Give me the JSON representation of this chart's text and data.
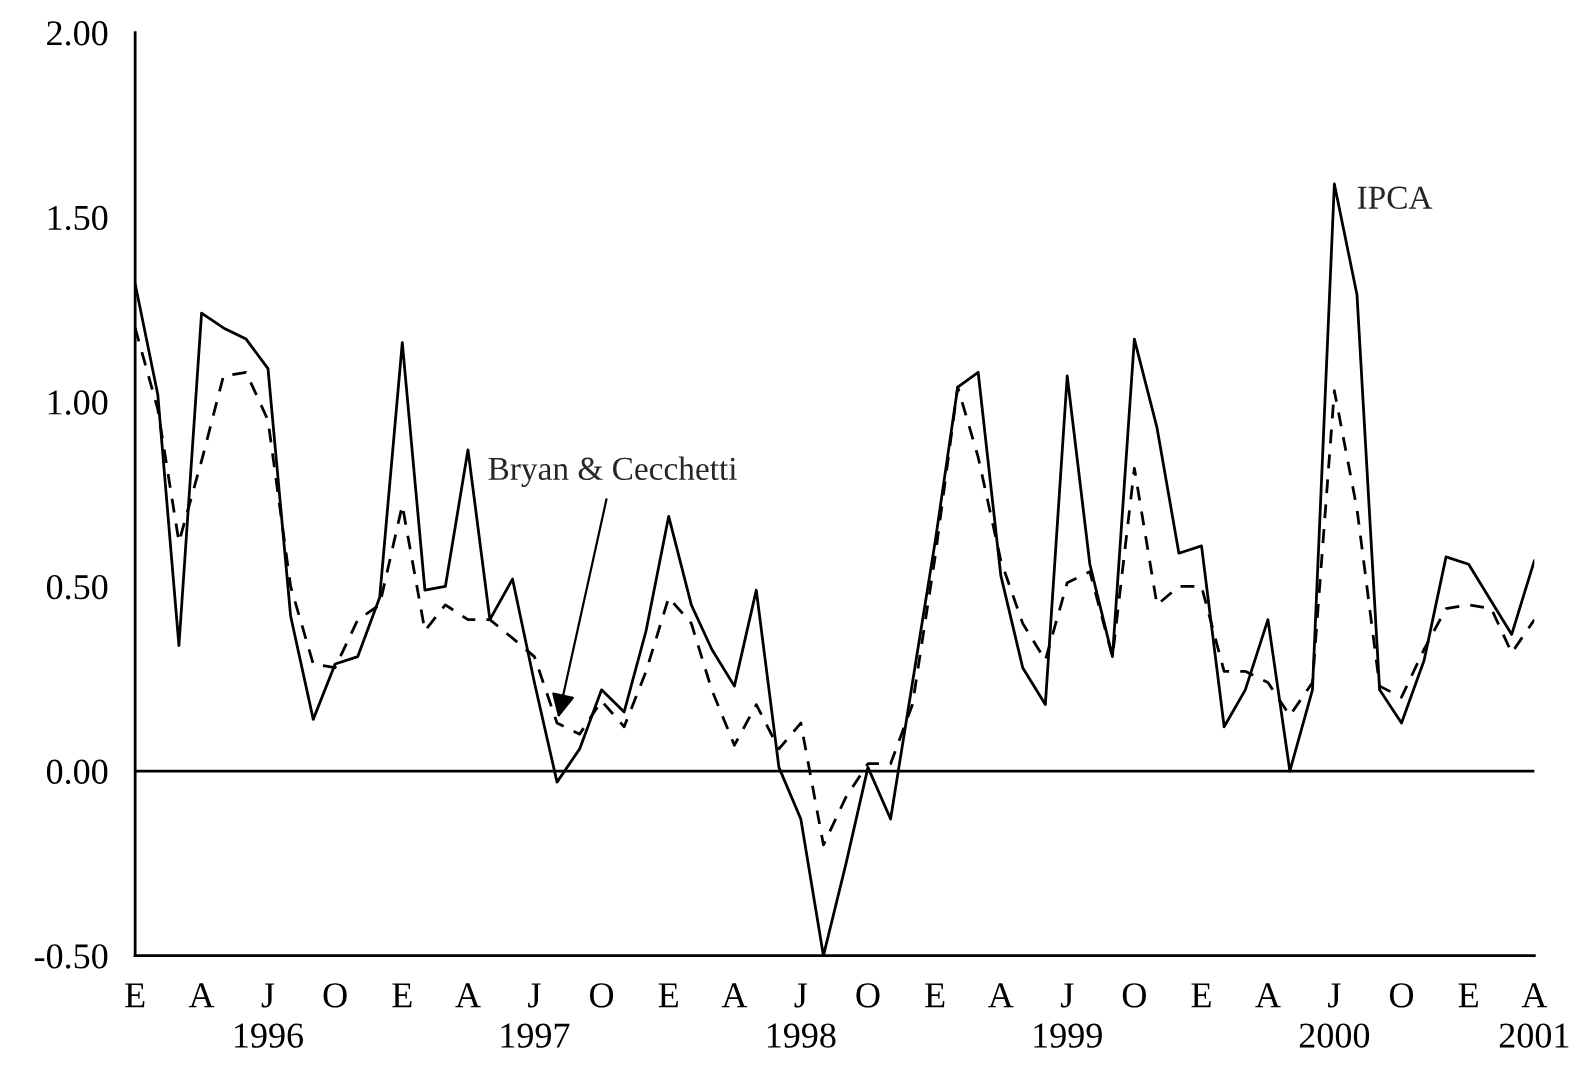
{
  "chart_data": {
    "type": "line",
    "x": [
      "1996-01",
      "1996-02",
      "1996-03",
      "1996-04",
      "1996-05",
      "1996-06",
      "1996-07",
      "1996-08",
      "1996-09",
      "1996-10",
      "1996-11",
      "1996-12",
      "1997-01",
      "1997-02",
      "1997-03",
      "1997-04",
      "1997-05",
      "1997-06",
      "1997-07",
      "1997-08",
      "1997-09",
      "1997-10",
      "1997-11",
      "1997-12",
      "1998-01",
      "1998-02",
      "1998-03",
      "1998-04",
      "1998-05",
      "1998-06",
      "1998-07",
      "1998-08",
      "1998-09",
      "1998-10",
      "1998-11",
      "1998-12",
      "1999-01",
      "1999-02",
      "1999-03",
      "1999-04",
      "1999-05",
      "1999-06",
      "1999-07",
      "1999-08",
      "1999-09",
      "1999-10",
      "1999-11",
      "1999-12",
      "2000-01",
      "2000-02",
      "2000-03",
      "2000-04",
      "2000-05",
      "2000-06",
      "2000-07",
      "2000-08",
      "2000-09",
      "2000-10",
      "2000-11",
      "2000-12",
      "2001-01",
      "2001-02",
      "2001-03",
      "2001-04"
    ],
    "series": [
      {
        "name": "IPCA",
        "color": "#000000",
        "line_style": "solid",
        "values": [
          1.32,
          1.02,
          0.34,
          1.24,
          1.2,
          1.17,
          1.09,
          0.42,
          0.14,
          0.29,
          0.31,
          0.47,
          1.16,
          0.49,
          0.5,
          0.87,
          0.41,
          0.52,
          0.24,
          -0.03,
          0.06,
          0.22,
          0.16,
          0.38,
          0.69,
          0.45,
          0.33,
          0.23,
          0.49,
          0.01,
          -0.13,
          -0.5,
          -0.25,
          0.01,
          -0.13,
          0.24,
          0.62,
          1.04,
          1.08,
          0.53,
          0.28,
          0.18,
          1.07,
          0.56,
          0.31,
          1.17,
          0.93,
          0.59,
          0.61,
          0.12,
          0.22,
          0.41,
          0.0,
          0.22,
          1.59,
          1.29,
          0.22,
          0.13,
          0.3,
          0.58,
          0.56,
          0.46,
          0.37,
          0.57
        ]
      },
      {
        "color": "#000000",
        "line_style": "dashed",
        "values": [
          1.2,
          0.98,
          0.62,
          0.84,
          1.07,
          1.08,
          0.95,
          0.5,
          0.29,
          0.28,
          0.41,
          0.45,
          0.72,
          0.38,
          0.45,
          0.41,
          0.41,
          0.36,
          0.31,
          0.13,
          0.1,
          0.19,
          0.12,
          0.27,
          0.47,
          0.4,
          0.22,
          0.07,
          0.18,
          0.06,
          0.13,
          -0.2,
          -0.07,
          0.02,
          0.02,
          0.18,
          0.58,
          1.04,
          0.85,
          0.57,
          0.4,
          0.3,
          0.51,
          0.54,
          0.31,
          0.82,
          0.45,
          0.5,
          0.5,
          0.27,
          0.27,
          0.24,
          0.15,
          0.24,
          1.03,
          0.71,
          0.23,
          0.2,
          0.33,
          0.44,
          0.45,
          0.44,
          0.32,
          0.41
        ]
      }
    ],
    "annotations": [
      {
        "text": "Bryan & Cecchetti",
        "x": "1997-08",
        "y": 0.13
      }
    ],
    "ylim": [
      -0.5,
      2.0
    ],
    "yticks": [
      {
        "value": -0.5,
        "label": "-0.50"
      },
      {
        "value": 0,
        "label": "0.00"
      },
      {
        "value": 0.5,
        "label": "0.50"
      },
      {
        "value": 1.0,
        "label": "1.00"
      },
      {
        "value": 1.5,
        "label": "1.50"
      },
      {
        "value": 2.0,
        "label": "2.00"
      }
    ],
    "xlim": [
      "1996-01",
      "2001-04"
    ],
    "xticks": [
      {
        "value": "1996-01",
        "label": "E"
      },
      {
        "value": "1996-04",
        "label": "A"
      },
      {
        "value": "1996-07",
        "label": "J\n1996"
      },
      {
        "value": "1996-10",
        "label": "O"
      },
      {
        "value": "1997-01",
        "label": "E"
      },
      {
        "value": "1997-04",
        "label": "A"
      },
      {
        "value": "1997-07",
        "label": "J\n1997"
      },
      {
        "value": "1997-10",
        "label": "O"
      },
      {
        "value": "1998-01",
        "label": "E"
      },
      {
        "value": "1998-04",
        "label": "A"
      },
      {
        "value": "1998-07",
        "label": "J\n1998"
      },
      {
        "value": "1998-10",
        "label": "O"
      },
      {
        "value": "1999-01",
        "label": "E"
      },
      {
        "value": "1999-04",
        "label": "A"
      },
      {
        "value": "1999-07",
        "label": "J\n1999"
      },
      {
        "value": "1999-10",
        "label": "O"
      },
      {
        "value": "2000-01",
        "label": "E"
      },
      {
        "value": "2000-04",
        "label": "A"
      },
      {
        "value": "2000-07",
        "label": "J\n2000"
      },
      {
        "value": "2000-10",
        "label": "O"
      },
      {
        "value": "2001-01",
        "label": "E"
      },
      {
        "value": "2001-04",
        "label": "A\n2001"
      }
    ],
    "ref_lines": [
      {
        "axis": "y",
        "value": 0,
        "color": "#000000",
        "line_style": "solid"
      }
    ],
    "grid": false,
    "legend": false
  }
}
